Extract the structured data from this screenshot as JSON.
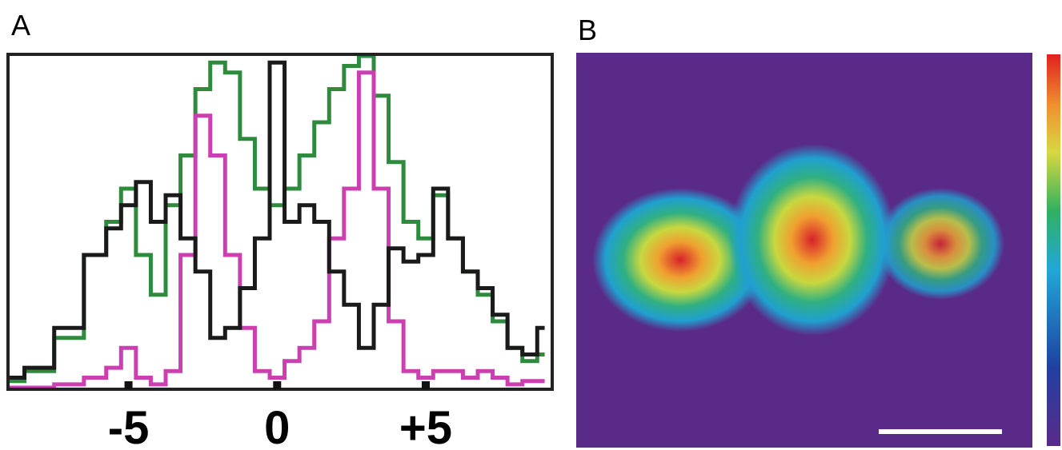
{
  "panel_labels": [
    "A",
    "B"
  ],
  "chart_data": {
    "type": "line",
    "step": true,
    "x": [
      -9,
      -8,
      -7,
      -6,
      -5.5,
      -5,
      -4.5,
      -4,
      -3.5,
      -3,
      -2.5,
      -2,
      -1.5,
      -1,
      -0.5,
      0,
      0.5,
      1,
      1.5,
      2,
      2.5,
      3,
      3.5,
      4,
      4.5,
      5,
      5.5,
      6,
      6.5,
      7,
      7.5,
      8,
      8.5,
      9
    ],
    "series": [
      {
        "color": "#2e8b3e",
        "values": [
          2,
          5,
          15,
          40,
          50,
          60,
          40,
          28,
          55,
          70,
          90,
          98,
          95,
          75,
          60,
          55,
          60,
          70,
          80,
          90,
          97,
          100,
          88,
          68,
          50,
          45,
          58,
          45,
          35,
          28,
          20,
          12,
          8,
          10
        ]
      },
      {
        "color": "#cc3fb0",
        "values": [
          0,
          0,
          1,
          3,
          6,
          12,
          3,
          1,
          5,
          40,
          82,
          70,
          40,
          18,
          5,
          3,
          8,
          12,
          20,
          45,
          60,
          95,
          60,
          20,
          5,
          3,
          5,
          5,
          3,
          5,
          3,
          1,
          2,
          2
        ]
      },
      {
        "color": "#1a1a1a",
        "values": [
          3,
          6,
          18,
          40,
          48,
          55,
          62,
          50,
          58,
          45,
          35,
          15,
          18,
          30,
          45,
          98,
          50,
          55,
          50,
          35,
          25,
          12,
          25,
          42,
          38,
          40,
          60,
          45,
          35,
          30,
          22,
          12,
          10,
          18
        ]
      }
    ],
    "xlim": [
      -9,
      9.2
    ],
    "ylim": [
      0,
      100
    ],
    "xticks": [
      -5,
      0,
      {
        "value": 5,
        "label": "+5"
      }
    ]
  }
}
